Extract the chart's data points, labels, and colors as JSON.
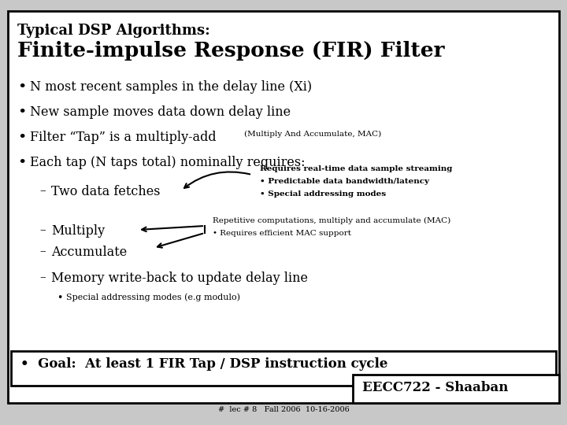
{
  "title_line1": "Typical DSP Algorithms:",
  "title_line2": "Finite-impulse Response (FIR) Filter",
  "bg_color": "#c8c8c8",
  "slide_bg": "#ffffff",
  "border_color": "#000000",
  "bullet1": "N most recent samples in the delay line (Xi)",
  "bullet2": "New sample moves data down delay line",
  "bullet3_main": "Filter “Tap” is a multiply-add",
  "bullet3_small": "(Multiply And Accumulate, MAC)",
  "bullet4": "Each tap (N taps total) nominally requires:",
  "sub1": "Two data fetches",
  "sub1_note_line1": "Requires real-time data sample streaming",
  "sub1_note_line2": "• Predictable data bandwidth/latency",
  "sub1_note_line3": "• Special addressing modes",
  "sub2": "Multiply",
  "sub3": "Accumulate",
  "sub23_note_line1": "Repetitive computations, multiply and accumulate (MAC)",
  "sub23_note_line2": "• Requires efficient MAC support",
  "sub4": "Memory write-back to update delay line",
  "sub4_sub": "Special addressing modes (e.g modulo)",
  "goal": "•  Goal:  At least 1 FIR Tap / DSP instruction cycle",
  "footer": "EECC722 - Shaaban",
  "footer_small": "#  lec # 8   Fall 2006  10-16-2006"
}
